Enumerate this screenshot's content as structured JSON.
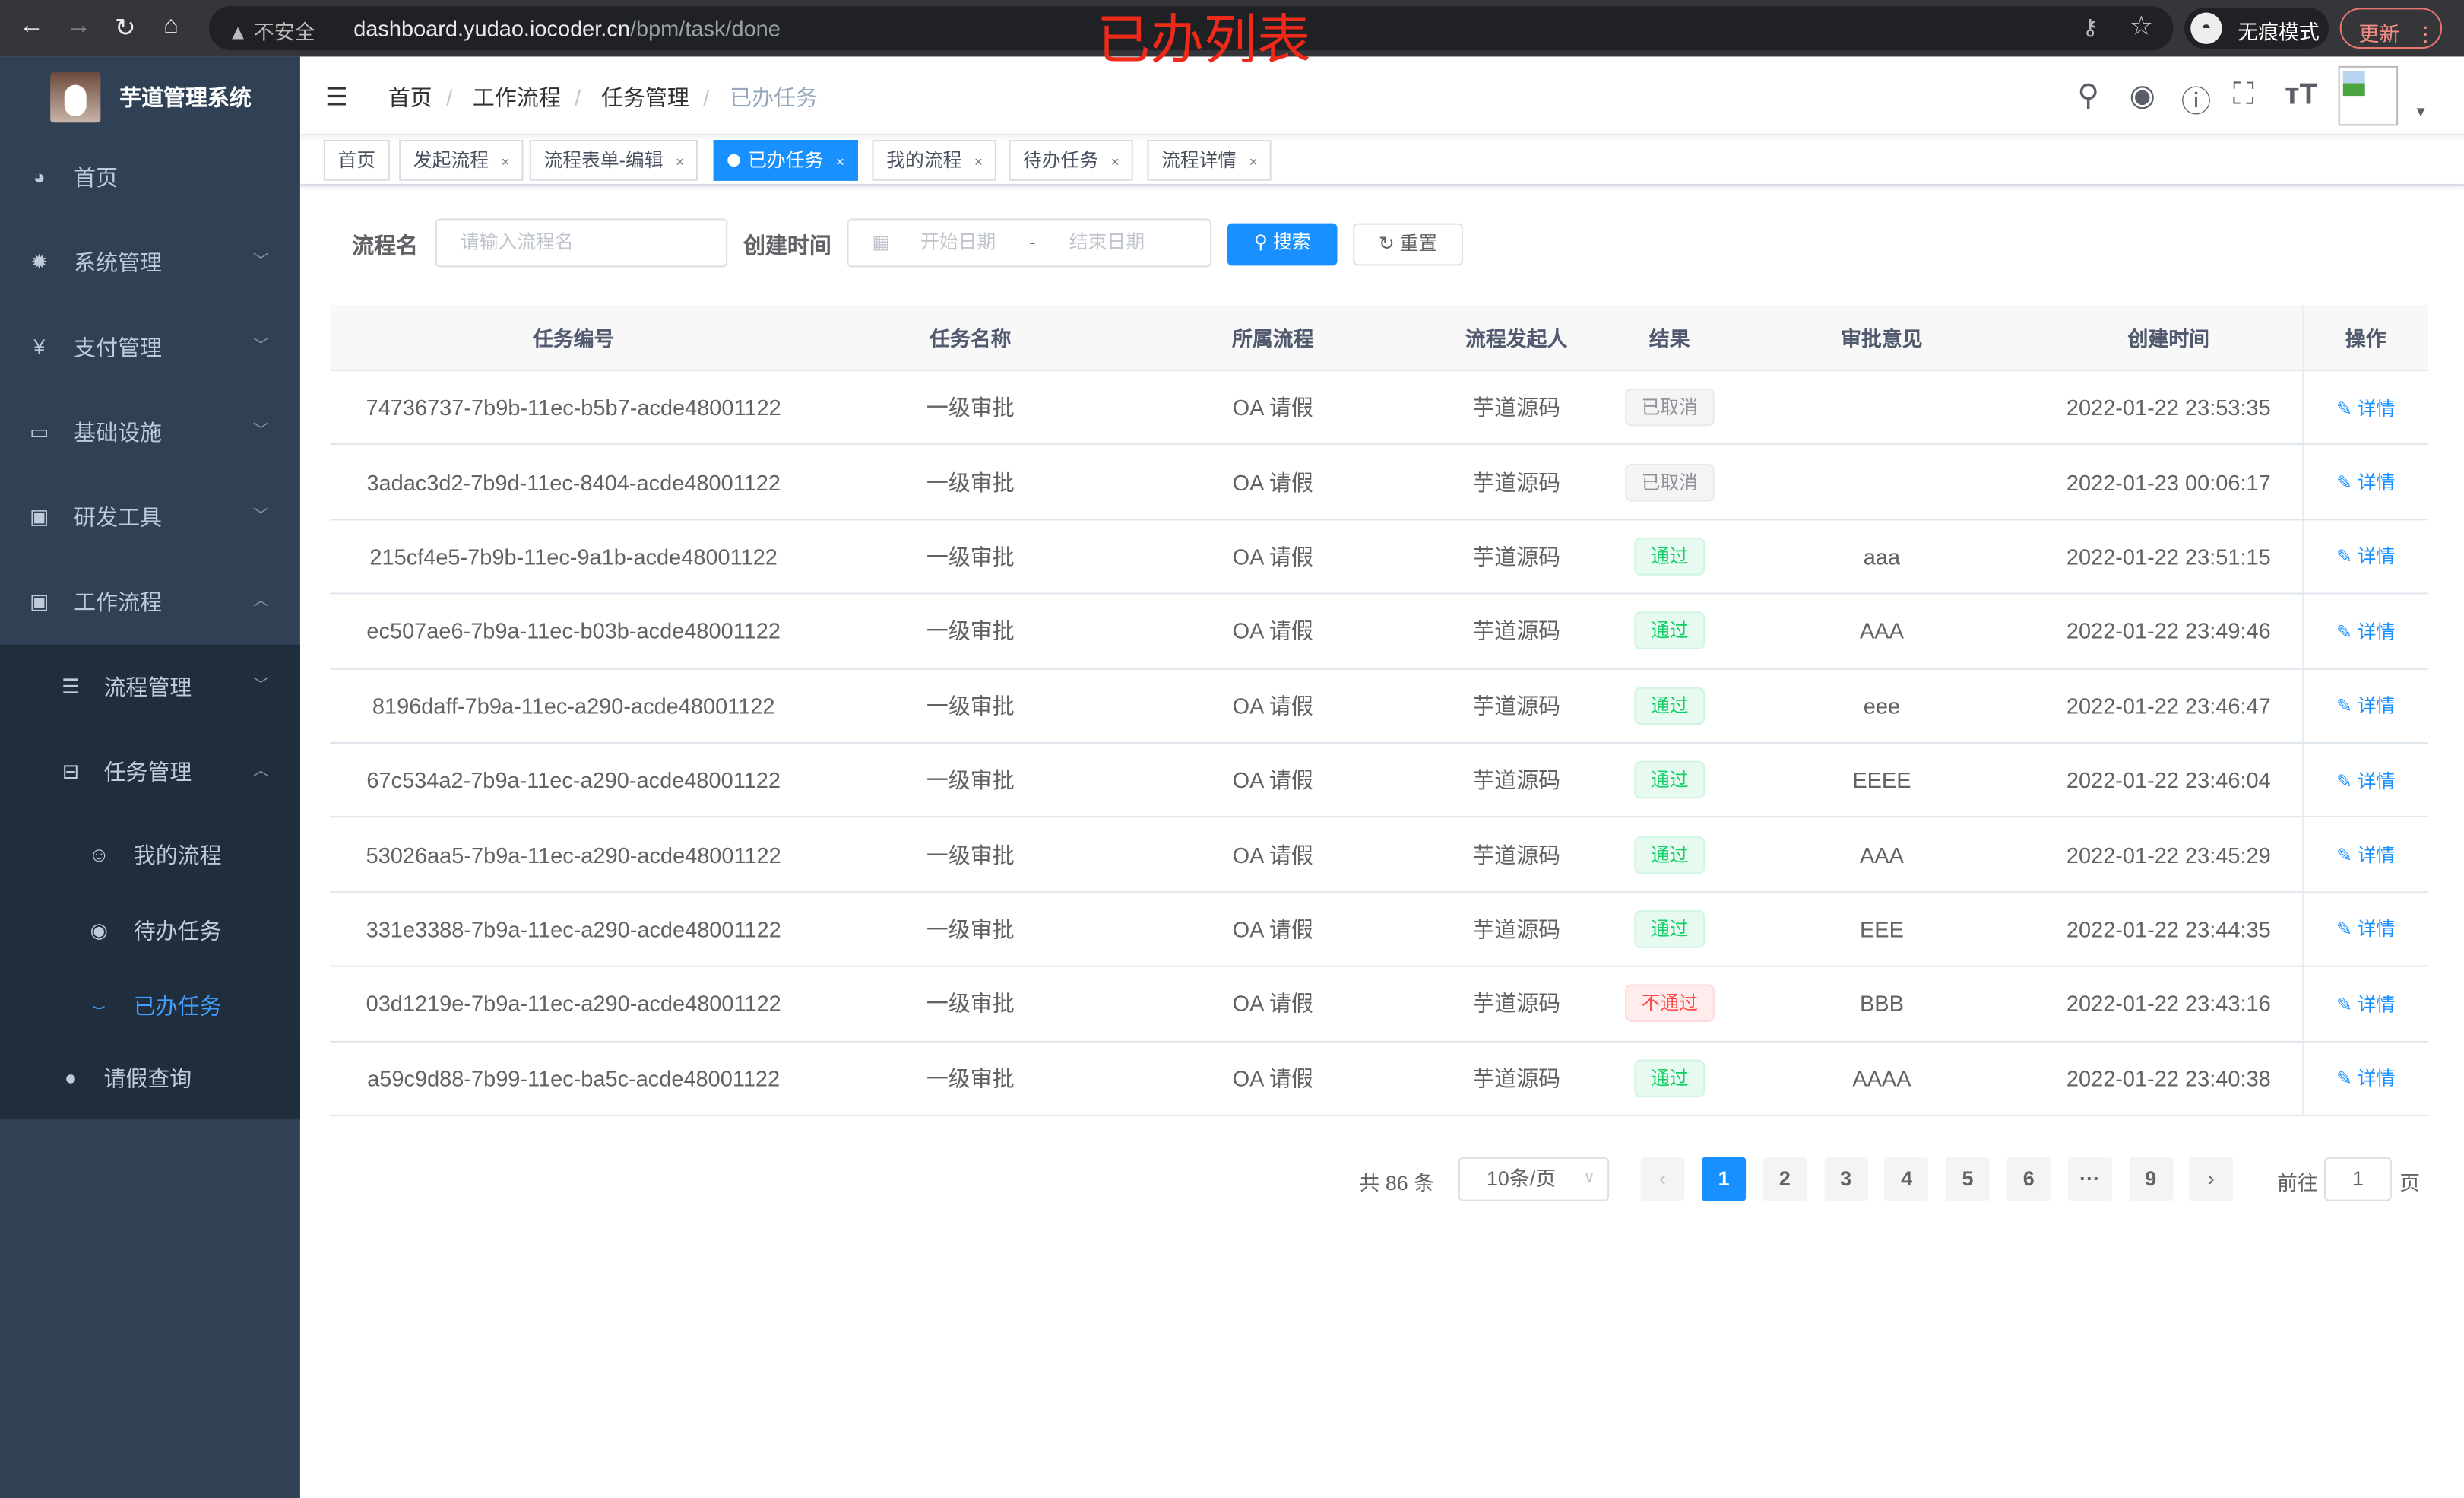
{
  "browser": {
    "security": "不安全",
    "url_host": "dashboard.yudao.iocoder.cn",
    "url_path": "/bpm/task/done",
    "incognito": "无痕模式",
    "update": "更新"
  },
  "overlay_title": "已办列表",
  "sidebar": {
    "title": "芋道管理系统",
    "items": [
      {
        "label": "首页",
        "icon": "dashboard-icon"
      },
      {
        "label": "系统管理",
        "icon": "gear-icon"
      },
      {
        "label": "支付管理",
        "icon": "yen-icon"
      },
      {
        "label": "基础设施",
        "icon": "monitor-icon"
      },
      {
        "label": "研发工具",
        "icon": "toolbox-icon"
      },
      {
        "label": "工作流程",
        "icon": "toolbox-icon"
      }
    ],
    "sub": [
      {
        "label": "流程管理",
        "icon": "list-icon"
      },
      {
        "label": "任务管理",
        "icon": "tree-icon"
      }
    ],
    "sub2": [
      {
        "label": "我的流程",
        "icon": "user-icon"
      },
      {
        "label": "待办任务",
        "icon": "eye-icon"
      },
      {
        "label": "已办任务",
        "icon": "eye-closed-icon"
      }
    ],
    "leave": {
      "label": "请假查询",
      "icon": "person-icon"
    }
  },
  "breadcrumb": [
    "首页",
    "工作流程",
    "任务管理",
    "已办任务"
  ],
  "tags": [
    {
      "label": "首页"
    },
    {
      "label": "发起流程"
    },
    {
      "label": "流程表单-编辑"
    },
    {
      "label": "已办任务",
      "active": true
    },
    {
      "label": "我的流程"
    },
    {
      "label": "待办任务"
    },
    {
      "label": "流程详情"
    }
  ],
  "search": {
    "name_label": "流程名",
    "name_placeholder": "请输入流程名",
    "time_label": "创建时间",
    "start_placeholder": "开始日期",
    "range_sep": "-",
    "end_placeholder": "结束日期",
    "search_btn": "搜索",
    "reset_btn": "重置"
  },
  "table": {
    "headers": [
      "任务编号",
      "任务名称",
      "所属流程",
      "流程发起人",
      "结果",
      "审批意见",
      "创建时间",
      "操作"
    ],
    "rows": [
      {
        "id": "74736737-7b9b-11ec-b5b7-acde48001122",
        "name": "一级审批",
        "process": "OA 请假",
        "starter": "芋道源码",
        "result": "已取消",
        "status": "cancel",
        "comment": "",
        "time": "2022-01-22 23:53:35",
        "op": "详情"
      },
      {
        "id": "3adac3d2-7b9d-11ec-8404-acde48001122",
        "name": "一级审批",
        "process": "OA 请假",
        "starter": "芋道源码",
        "result": "已取消",
        "status": "cancel",
        "comment": "",
        "time": "2022-01-23 00:06:17",
        "op": "详情"
      },
      {
        "id": "215cf4e5-7b9b-11ec-9a1b-acde48001122",
        "name": "一级审批",
        "process": "OA 请假",
        "starter": "芋道源码",
        "result": "通过",
        "status": "pass",
        "comment": "aaa",
        "time": "2022-01-22 23:51:15",
        "op": "详情"
      },
      {
        "id": "ec507ae6-7b9a-11ec-b03b-acde48001122",
        "name": "一级审批",
        "process": "OA 请假",
        "starter": "芋道源码",
        "result": "通过",
        "status": "pass",
        "comment": "AAA",
        "time": "2022-01-22 23:49:46",
        "op": "详情"
      },
      {
        "id": "8196daff-7b9a-11ec-a290-acde48001122",
        "name": "一级审批",
        "process": "OA 请假",
        "starter": "芋道源码",
        "result": "通过",
        "status": "pass",
        "comment": "eee",
        "time": "2022-01-22 23:46:47",
        "op": "详情"
      },
      {
        "id": "67c534a2-7b9a-11ec-a290-acde48001122",
        "name": "一级审批",
        "process": "OA 请假",
        "starter": "芋道源码",
        "result": "通过",
        "status": "pass",
        "comment": "EEEE",
        "time": "2022-01-22 23:46:04",
        "op": "详情"
      },
      {
        "id": "53026aa5-7b9a-11ec-a290-acde48001122",
        "name": "一级审批",
        "process": "OA 请假",
        "starter": "芋道源码",
        "result": "通过",
        "status": "pass",
        "comment": "AAA",
        "time": "2022-01-22 23:45:29",
        "op": "详情"
      },
      {
        "id": "331e3388-7b9a-11ec-a290-acde48001122",
        "name": "一级审批",
        "process": "OA 请假",
        "starter": "芋道源码",
        "result": "通过",
        "status": "pass",
        "comment": "EEE",
        "time": "2022-01-22 23:44:35",
        "op": "详情"
      },
      {
        "id": "03d1219e-7b9a-11ec-a290-acde48001122",
        "name": "一级审批",
        "process": "OA 请假",
        "starter": "芋道源码",
        "result": "不通过",
        "status": "fail",
        "comment": "BBB",
        "time": "2022-01-22 23:43:16",
        "op": "详情"
      },
      {
        "id": "a59c9d88-7b99-11ec-ba5c-acde48001122",
        "name": "一级审批",
        "process": "OA 请假",
        "starter": "芋道源码",
        "result": "通过",
        "status": "pass",
        "comment": "AAAA",
        "time": "2022-01-22 23:40:38",
        "op": "详情"
      }
    ]
  },
  "pagination": {
    "total": "共 86 条",
    "page_size": "10条/页",
    "pages": [
      "1",
      "2",
      "3",
      "4",
      "5",
      "6",
      "···",
      "9"
    ],
    "current": "1",
    "goto_label": "前往",
    "goto_value": "1",
    "goto_suffix": "页"
  },
  "colors": {
    "primary": "#1890ff",
    "sidebar": "#304156",
    "submenu": "#1f2d3d",
    "pass": "#13ce66",
    "fail": "#ff4949"
  }
}
